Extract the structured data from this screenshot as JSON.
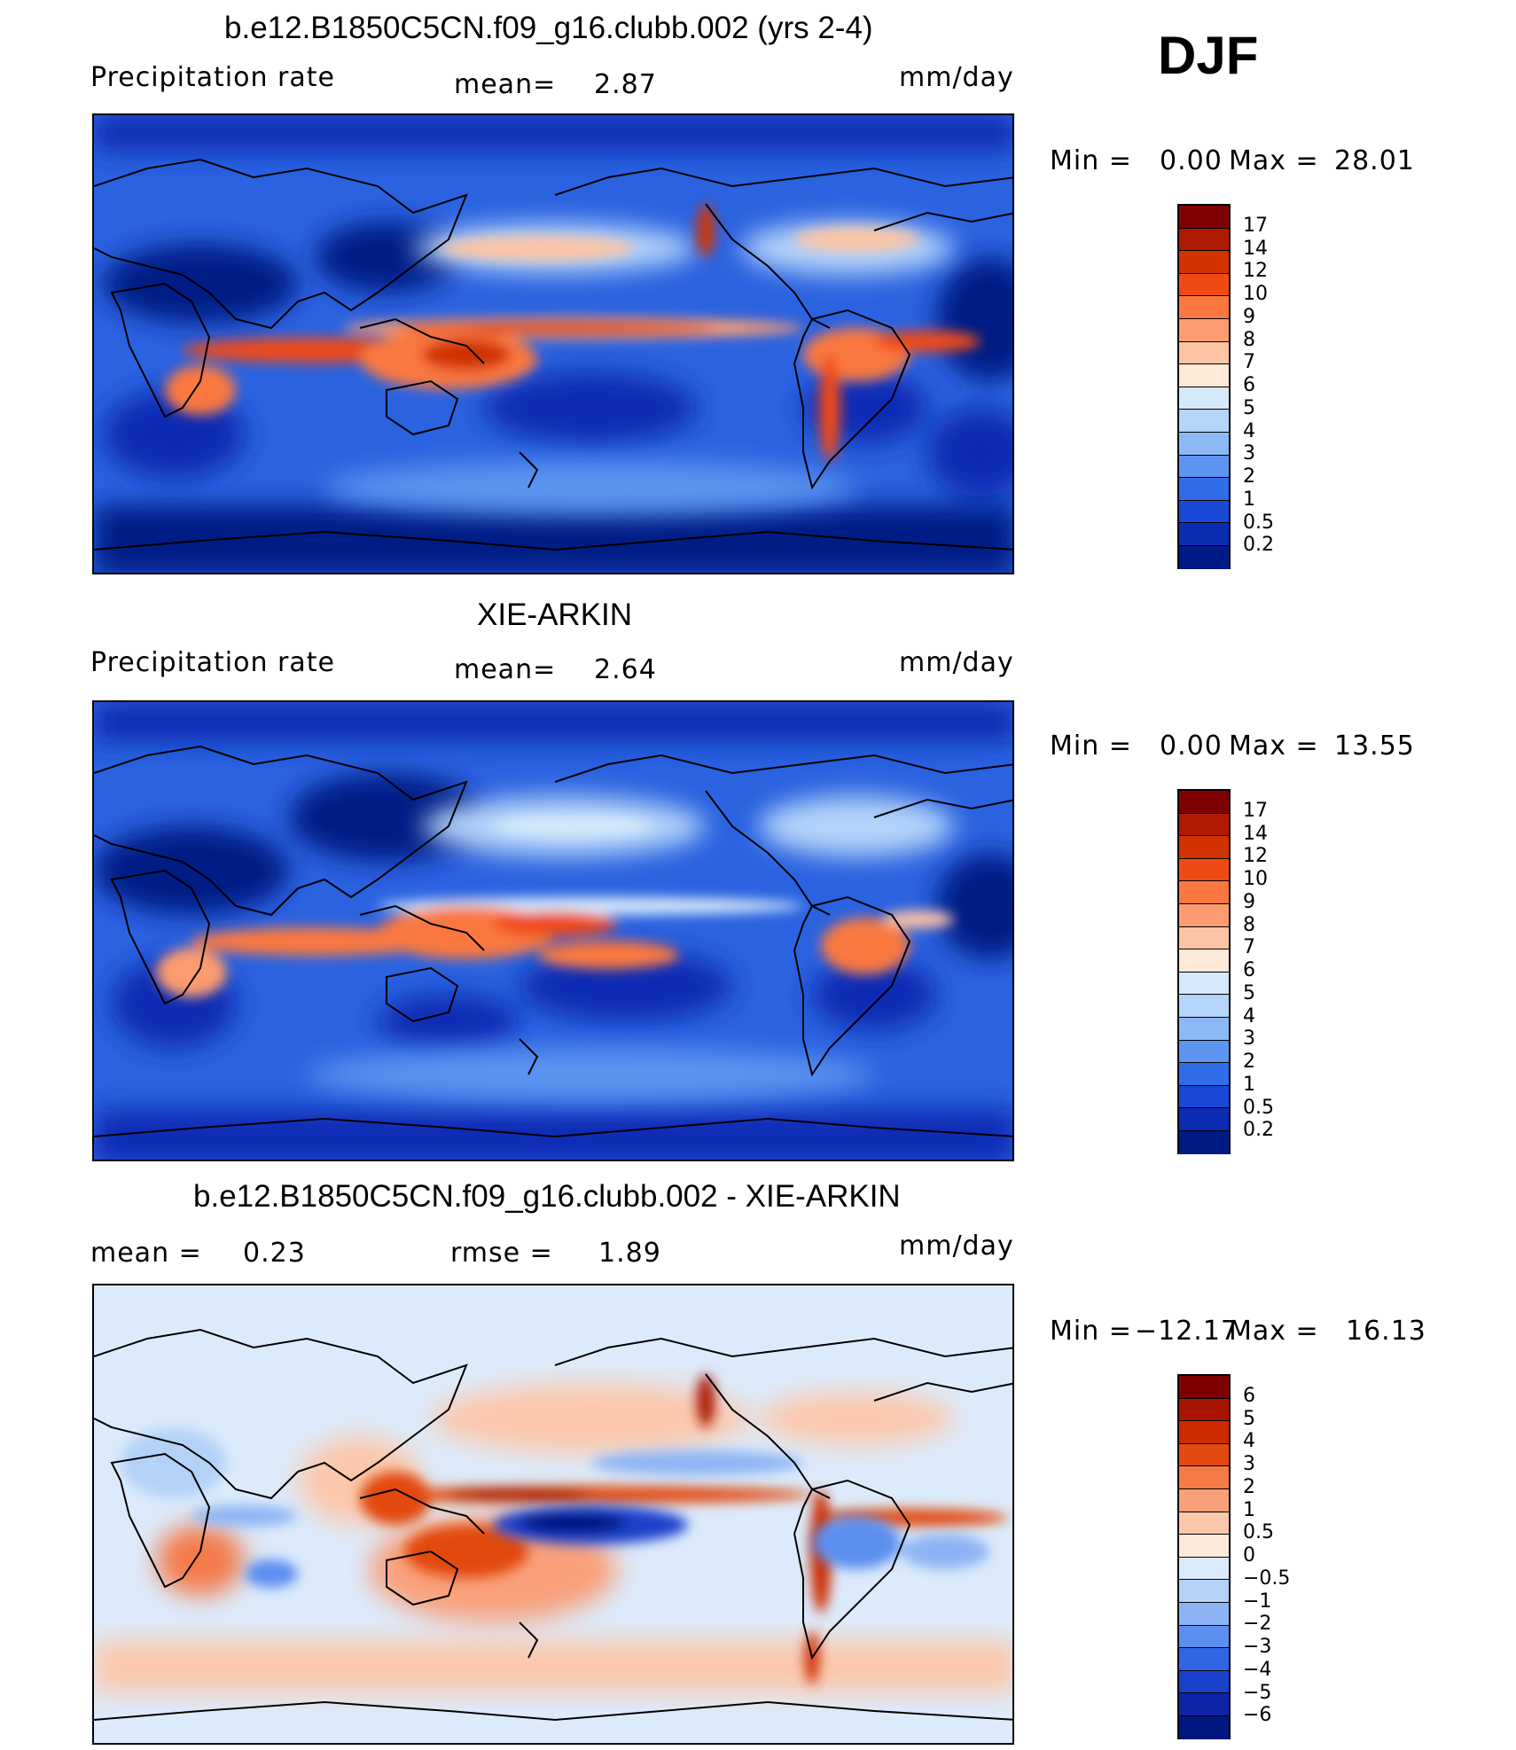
{
  "season": "DJF",
  "panels": [
    {
      "title": "b.e12.B1850C5CN.f09_g16.clubb.002 (yrs 2-4)",
      "left_label": "Precipitation  rate",
      "center_label": "mean=",
      "center_value": "2.87",
      "right_label": "mm/day",
      "minmax": {
        "min_label": "Min  =",
        "min_value": "0.00",
        "max_label": "Max  =",
        "max_value": "28.01"
      },
      "colorbar": {
        "labels": [
          "17",
          "14",
          "12",
          "10",
          "9",
          "8",
          "7",
          "6",
          "5",
          "4",
          "3",
          "2",
          "1",
          "0.5",
          "0.2"
        ],
        "colors": [
          "#7f0000",
          "#b01a00",
          "#d23200",
          "#f04a14",
          "#fa7840",
          "#fc9c70",
          "#fdc4a4",
          "#fee8d8",
          "#d6e9fb",
          "#b4d4fa",
          "#8cb8f6",
          "#5c94f0",
          "#2f6de8",
          "#1a48d6",
          "#0c2cb4",
          "#001a86"
        ]
      }
    },
    {
      "title": "XIE-ARKIN",
      "left_label": "Precipitation  rate",
      "center_label": "mean=",
      "center_value": "2.64",
      "right_label": "mm/day",
      "minmax": {
        "min_label": "Min  =",
        "min_value": "0.00",
        "max_label": "Max  =",
        "max_value": "13.55"
      },
      "colorbar": {
        "labels": [
          "17",
          "14",
          "12",
          "10",
          "9",
          "8",
          "7",
          "6",
          "5",
          "4",
          "3",
          "2",
          "1",
          "0.5",
          "0.2"
        ],
        "colors": [
          "#7f0000",
          "#b01a00",
          "#d23200",
          "#f04a14",
          "#fa7840",
          "#fc9c70",
          "#fdc4a4",
          "#fee8d8",
          "#d6e9fb",
          "#b4d4fa",
          "#8cb8f6",
          "#5c94f0",
          "#2f6de8",
          "#1a48d6",
          "#0c2cb4",
          "#001a86"
        ]
      }
    },
    {
      "title": "b.e12.B1850C5CN.f09_g16.clubb.002 - XIE-ARKIN",
      "left_label": "mean  =",
      "left_value": "0.23",
      "center_label": "rmse  =",
      "center_value": "1.89",
      "right_label": "mm/day",
      "minmax": {
        "min_label": "Min  =",
        "min_value": "−12.17",
        "max_label": "Max  =",
        "max_value": "16.13"
      },
      "colorbar": {
        "labels": [
          "6",
          "5",
          "4",
          "3",
          "2",
          "1",
          "0.5",
          "0",
          "−0.5",
          "−1",
          "−2",
          "−3",
          "−4",
          "−5",
          "−6"
        ],
        "colors": [
          "#7f0000",
          "#a81400",
          "#cc2a00",
          "#e24a10",
          "#f47a48",
          "#f9a07a",
          "#fcc8ac",
          "#feeadc",
          "#dcebfb",
          "#b4d2f8",
          "#8cb4f4",
          "#5c8ef0",
          "#2f66e6",
          "#1a40cc",
          "#0c24a8",
          "#001680"
        ]
      }
    }
  ]
}
